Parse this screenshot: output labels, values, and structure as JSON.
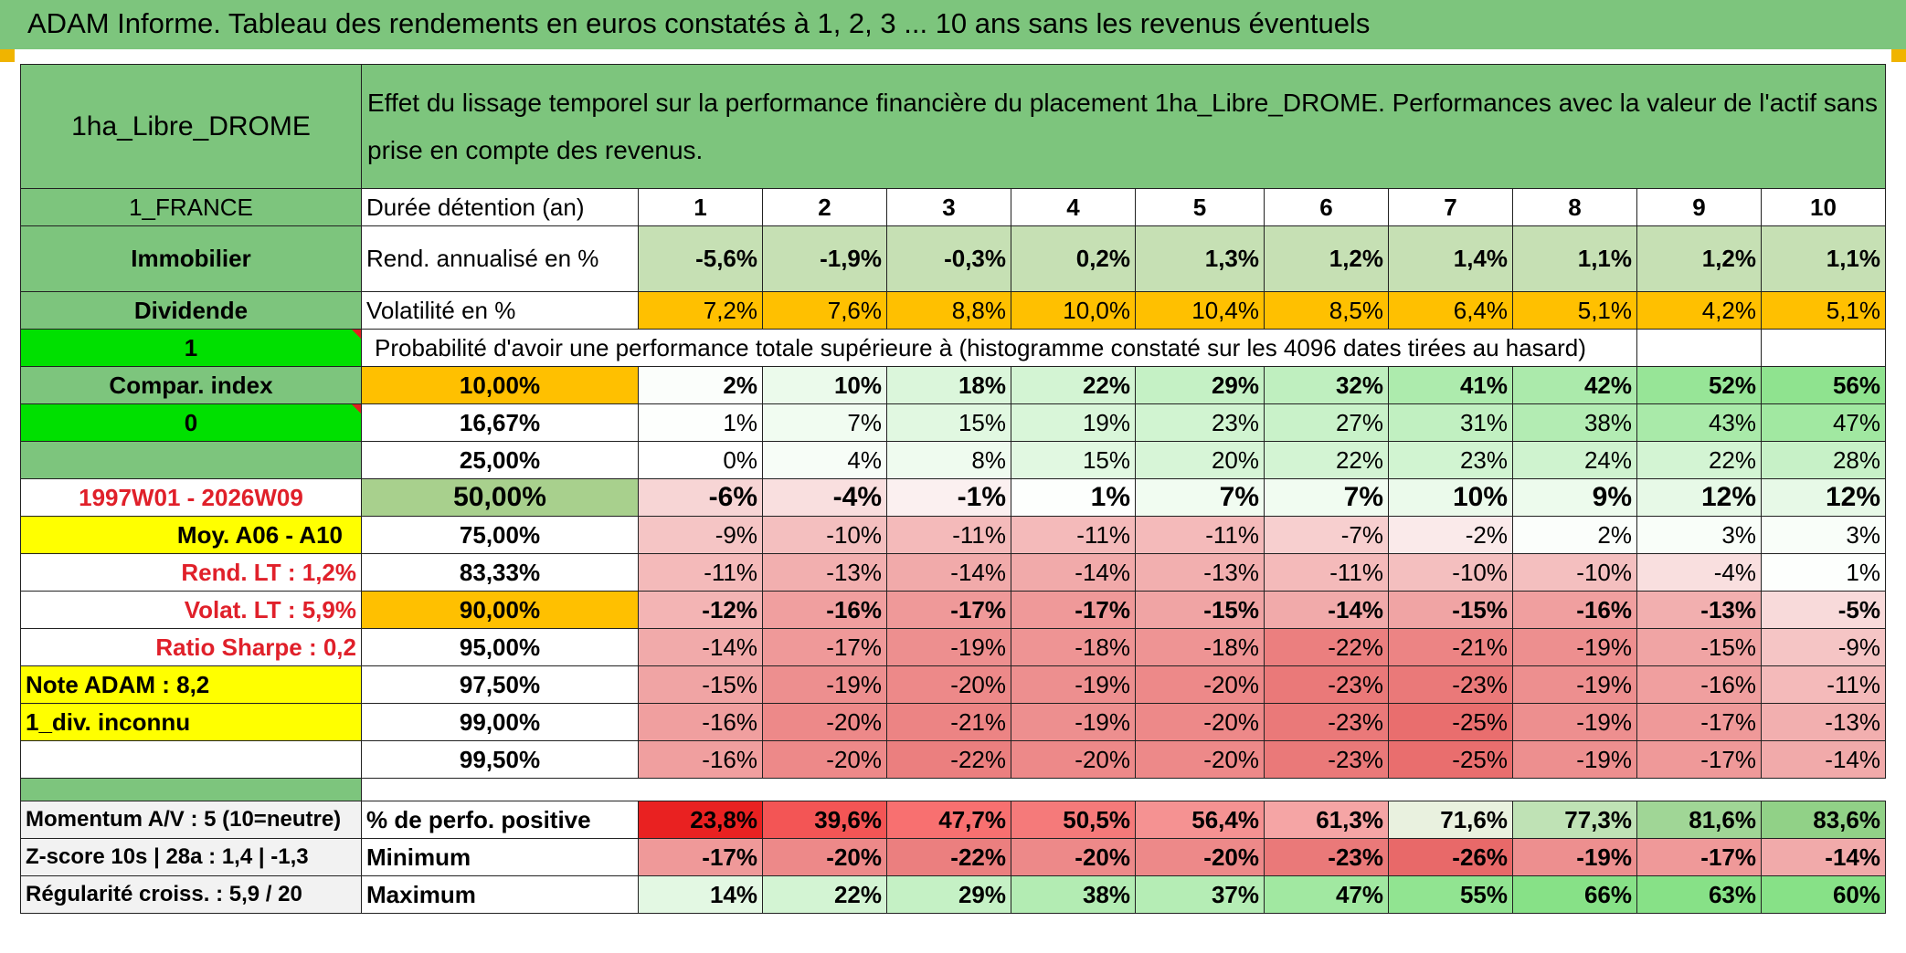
{
  "title": "ADAM Informe. Tableau des rendements en euros constatés à 1, 2, 3 ... 10 ans sans les revenus éventuels",
  "asset_name": "1ha_Libre_DROME",
  "header_text": "Effet du lissage temporel sur la performance financière du placement 1ha_Libre_DROME. Performances avec la valeur de l'actif sans prise en compte des revenus.",
  "left_labels": {
    "country": "1_FRANCE",
    "category": "Immobilier",
    "dividend": "Dividende",
    "flag1": "1",
    "compar_index": "Compar. index",
    "flag0": "0",
    "period": "1997W01 - 2026W09",
    "avg": "Moy. A06 - A10",
    "rend_lt": "Rend. LT :   1,2%",
    "volat_lt": "Volat. LT :   5,9%",
    "sharpe": "Ratio Sharpe :    0,2",
    "note": "Note ADAM : 8,2",
    "div": "1_div. inconnu",
    "momentum": "Momentum A/V : 5 (10=neutre)",
    "zscore": "Z-score 10s | 28a : 1,4 | -1,3",
    "regularite": "Régularité croiss. : 5,9 / 20"
  },
  "row_labels": {
    "duration": "Durée détention (an)",
    "rend": "Rend. annualisé en %",
    "volat": "Volatilité en %",
    "proba": "Probabilité d'avoir une performance totale supérieure à (histogramme constaté sur les 4096 dates tirées au hasard)",
    "positive": "% de perfo. positive",
    "minimum": "Minimum",
    "maximum": "Maximum"
  },
  "years": [
    "1",
    "2",
    "3",
    "4",
    "5",
    "6",
    "7",
    "8",
    "9",
    "10"
  ],
  "rend": [
    "-5,6%",
    "-1,9%",
    "-0,3%",
    "0,2%",
    "1,3%",
    "1,2%",
    "1,4%",
    "1,1%",
    "1,2%",
    "1,1%"
  ],
  "volat": [
    "7,2%",
    "7,6%",
    "8,8%",
    "10,0%",
    "10,4%",
    "8,5%",
    "6,4%",
    "5,1%",
    "4,2%",
    "5,1%"
  ],
  "percentiles": [
    {
      "label": "10,00%",
      "values": [
        "2%",
        "10%",
        "18%",
        "22%",
        "29%",
        "32%",
        "41%",
        "42%",
        "52%",
        "56%"
      ]
    },
    {
      "label": "16,67%",
      "values": [
        "1%",
        "7%",
        "15%",
        "19%",
        "23%",
        "27%",
        "31%",
        "38%",
        "43%",
        "47%"
      ]
    },
    {
      "label": "25,00%",
      "values": [
        "0%",
        "4%",
        "8%",
        "15%",
        "20%",
        "22%",
        "23%",
        "24%",
        "22%",
        "28%"
      ]
    },
    {
      "label": "50,00%",
      "values": [
        "-6%",
        "-4%",
        "-1%",
        "1%",
        "7%",
        "7%",
        "10%",
        "9%",
        "12%",
        "12%"
      ]
    },
    {
      "label": "75,00%",
      "values": [
        "-9%",
        "-10%",
        "-11%",
        "-11%",
        "-11%",
        "-7%",
        "-2%",
        "2%",
        "3%",
        "3%"
      ]
    },
    {
      "label": "83,33%",
      "values": [
        "-11%",
        "-13%",
        "-14%",
        "-14%",
        "-13%",
        "-11%",
        "-10%",
        "-10%",
        "-4%",
        "1%"
      ]
    },
    {
      "label": "90,00%",
      "values": [
        "-12%",
        "-16%",
        "-17%",
        "-17%",
        "-15%",
        "-14%",
        "-15%",
        "-16%",
        "-13%",
        "-5%"
      ]
    },
    {
      "label": "95,00%",
      "values": [
        "-14%",
        "-17%",
        "-19%",
        "-18%",
        "-18%",
        "-22%",
        "-21%",
        "-19%",
        "-15%",
        "-9%"
      ]
    },
    {
      "label": "97,50%",
      "values": [
        "-15%",
        "-19%",
        "-20%",
        "-19%",
        "-20%",
        "-23%",
        "-23%",
        "-19%",
        "-16%",
        "-11%"
      ]
    },
    {
      "label": "99,00%",
      "values": [
        "-16%",
        "-20%",
        "-21%",
        "-19%",
        "-20%",
        "-23%",
        "-25%",
        "-19%",
        "-17%",
        "-13%"
      ]
    },
    {
      "label": "99,50%",
      "values": [
        "-16%",
        "-20%",
        "-22%",
        "-20%",
        "-20%",
        "-23%",
        "-25%",
        "-19%",
        "-17%",
        "-14%"
      ]
    }
  ],
  "positive": [
    "23,8%",
    "39,6%",
    "47,7%",
    "50,5%",
    "56,4%",
    "61,3%",
    "71,6%",
    "77,3%",
    "81,6%",
    "83,6%"
  ],
  "minimum": [
    "-17%",
    "-20%",
    "-22%",
    "-20%",
    "-20%",
    "-23%",
    "-26%",
    "-19%",
    "-17%",
    "-14%"
  ],
  "maximum": [
    "14%",
    "22%",
    "29%",
    "38%",
    "37%",
    "47%",
    "55%",
    "66%",
    "63%",
    "60%"
  ],
  "colors": {
    "header_green": "#7dc57d",
    "light_green": "#c6e0b4",
    "bright_green": "#00e000",
    "yellow": "#ffff00",
    "orange": "#ffc000",
    "red_text": "#e0202a"
  }
}
